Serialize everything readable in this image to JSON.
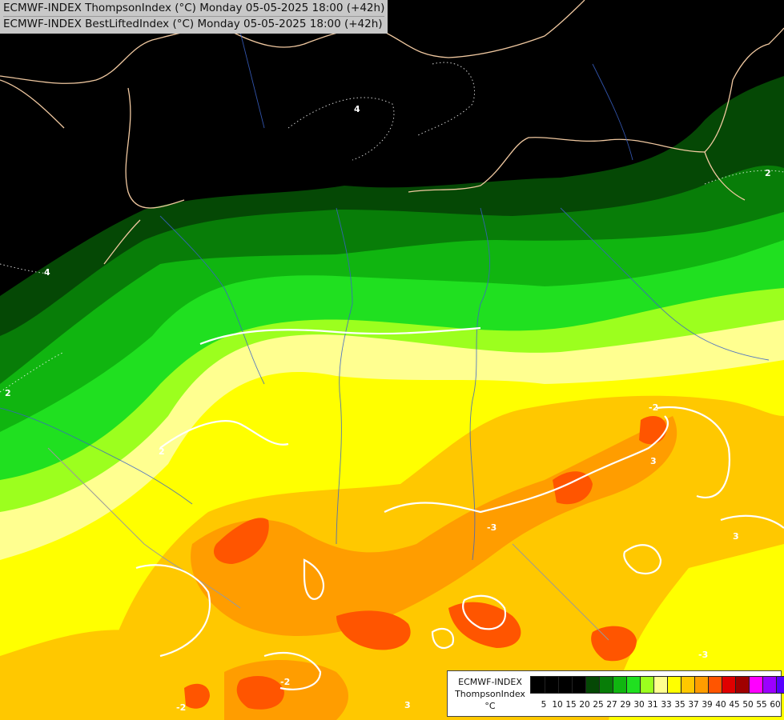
{
  "titles": [
    "ECMWF-INDEX ThompsonIndex (°C) Monday 05-05-2025 18:00 (+42h)",
    "ECMWF-INDEX BestLiftedIndex (°C) Monday 05-05-2025 18:00 (+42h)"
  ],
  "legend": {
    "name_lines": [
      "ECMWF-INDEX",
      "ThompsonIndex",
      "°C"
    ],
    "tick_labels": [
      "5",
      "10",
      "15",
      "20",
      "25",
      "27",
      "29",
      "30",
      "31",
      "33",
      "35",
      "37",
      "39",
      "40",
      "45",
      "50",
      "55",
      "60"
    ],
    "colors": [
      "#000000",
      "#000000",
      "#000000",
      "#000000",
      "#054805",
      "#087d08",
      "#10b510",
      "#20e020",
      "#9cff1e",
      "#ffff90",
      "#ffff00",
      "#ffc800",
      "#ff9d00",
      "#ff5500",
      "#e00000",
      "#a00000",
      "#ff00ff",
      "#9b00ff",
      "#5500ff",
      "#0000ff"
    ]
  },
  "contour_labels": [
    "4",
    "4",
    "2",
    "2",
    "2",
    "-2",
    "3",
    "-3",
    "3",
    "-3",
    "-2",
    "-2",
    "3"
  ]
}
